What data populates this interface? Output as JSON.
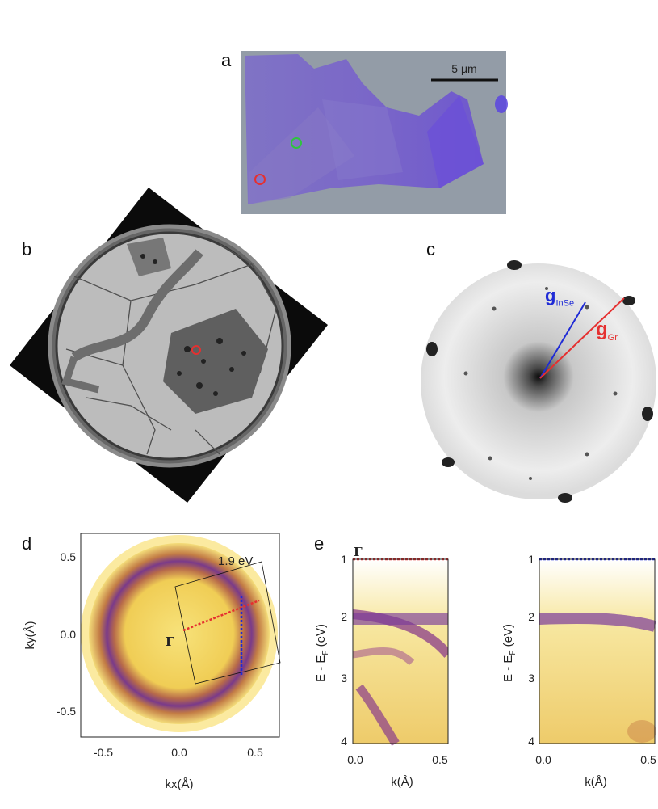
{
  "panels": {
    "a": {
      "label": "a",
      "scalebar": "5 μm",
      "colors": {
        "background": "#8f98a3",
        "flake": "#6f55c8",
        "flake_light": "#8f88c4"
      },
      "markers": [
        {
          "color": "#2fc33f"
        },
        {
          "color": "#e53030"
        }
      ]
    },
    "b": {
      "label": "b",
      "colors": {
        "marker": "#e53030"
      }
    },
    "c": {
      "label": "c",
      "vectors": [
        {
          "base": "g",
          "sub": "InSe",
          "color": "#1f2bd6"
        },
        {
          "base": "g",
          "sub": "Gr",
          "color": "#e53030"
        }
      ]
    },
    "d": {
      "label": "d",
      "energy": "1.9 eV",
      "point": "Γ",
      "xlabel": "kx(Å)",
      "ylabel": "ky(Å)",
      "xticks": [
        "-0.5",
        "0.0",
        "0.5"
      ],
      "yticks": [
        "0.5",
        "0.0",
        "-0.5"
      ]
    },
    "e": {
      "label": "e",
      "point": "Γ",
      "ylabel_left": "E - E",
      "ylabel_sub": "F",
      "ylabel_unit": " (eV)",
      "xlabel": "k(Å)",
      "xticks": [
        "0.0",
        "0.5"
      ],
      "yticks": [
        "1",
        "2",
        "3",
        "4"
      ],
      "line_colors": {
        "left": "#e53030",
        "right": "#1f2bd6"
      }
    }
  }
}
